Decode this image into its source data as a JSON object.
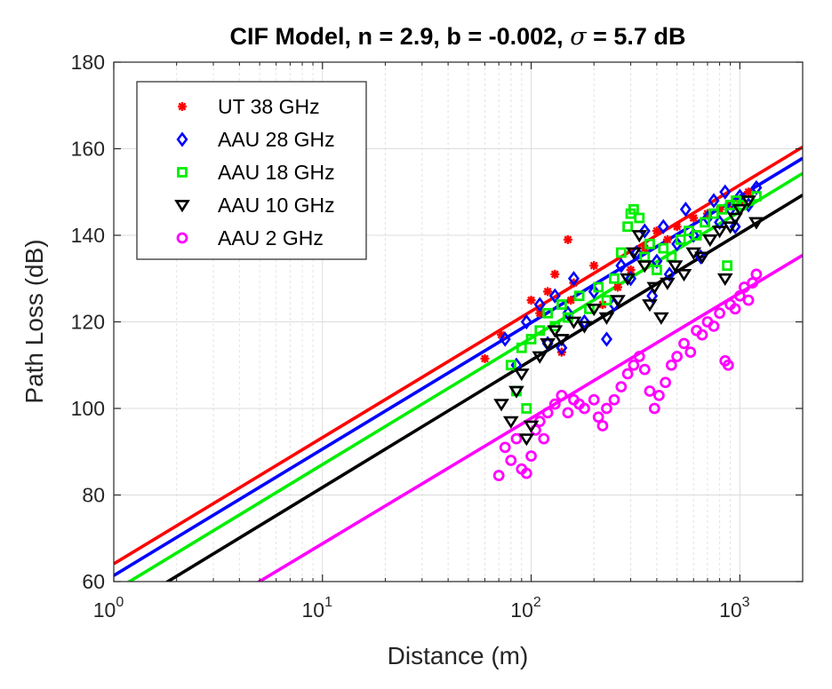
{
  "chart_data": {
    "type": "scatter",
    "title": "CIF Model, n = 2.9, b = -0.002,",
    "title_sigma": "σ",
    "title_suffix": "= 5.7 dB",
    "xlabel": "Distance (m)",
    "ylabel": "Path Loss (dB)",
    "x_scale": "log",
    "xlim": [
      1,
      2000
    ],
    "ylim": [
      60,
      180
    ],
    "x_ticks": [
      1,
      10,
      100,
      1000
    ],
    "x_tick_labels": [
      {
        "base": "10",
        "exp": "0"
      },
      {
        "base": "10",
        "exp": "1"
      },
      {
        "base": "10",
        "exp": "2"
      },
      {
        "base": "10",
        "exp": "3"
      }
    ],
    "y_ticks": [
      60,
      80,
      100,
      120,
      140,
      160,
      180
    ],
    "grid": true,
    "legend_position": "top-left",
    "series": [
      {
        "name": "UT 38 GHz",
        "marker": "star",
        "color": "#ff0000",
        "fit_line": {
          "x": [
            1,
            2000
          ],
          "y": [
            64.1,
            160.4
          ]
        },
        "points": [
          [
            60,
            111.5
          ],
          [
            72,
            117
          ],
          [
            100,
            125
          ],
          [
            110,
            122
          ],
          [
            120,
            127
          ],
          [
            130,
            131
          ],
          [
            140,
            113
          ],
          [
            150,
            139
          ],
          [
            155,
            125
          ],
          [
            160,
            129
          ],
          [
            200,
            133
          ],
          [
            220,
            124
          ],
          [
            260,
            128
          ],
          [
            300,
            132
          ],
          [
            350,
            137
          ],
          [
            400,
            141
          ],
          [
            450,
            139
          ],
          [
            500,
            142
          ],
          [
            600,
            144
          ],
          [
            700,
            145
          ],
          [
            800,
            146
          ],
          [
            900,
            147
          ],
          [
            1000,
            148
          ],
          [
            1100,
            150
          ]
        ]
      },
      {
        "name": "AAU 28 GHz",
        "marker": "diamond",
        "color": "#0000ff",
        "fit_line": {
          "x": [
            1,
            2000
          ],
          "y": [
            61.4,
            157.8
          ]
        },
        "points": [
          [
            75,
            116
          ],
          [
            85,
            110
          ],
          [
            95,
            120
          ],
          [
            110,
            124
          ],
          [
            120,
            115
          ],
          [
            130,
            126
          ],
          [
            140,
            114
          ],
          [
            150,
            122
          ],
          [
            160,
            130
          ],
          [
            180,
            120
          ],
          [
            200,
            127
          ],
          [
            230,
            116
          ],
          [
            250,
            124
          ],
          [
            270,
            133
          ],
          [
            300,
            130
          ],
          [
            320,
            136
          ],
          [
            350,
            141
          ],
          [
            380,
            126
          ],
          [
            400,
            134
          ],
          [
            430,
            142
          ],
          [
            460,
            131
          ],
          [
            500,
            138
          ],
          [
            550,
            146
          ],
          [
            600,
            140
          ],
          [
            650,
            135
          ],
          [
            700,
            144
          ],
          [
            750,
            148
          ],
          [
            800,
            143
          ],
          [
            850,
            150
          ],
          [
            900,
            146
          ],
          [
            950,
            142
          ],
          [
            1000,
            149
          ],
          [
            1100,
            147
          ],
          [
            1200,
            151
          ]
        ]
      },
      {
        "name": "AAU 18 GHz",
        "marker": "square",
        "color": "#00ee00",
        "fit_line": {
          "x": [
            1,
            2000
          ],
          "y": [
            57.8,
            154.3
          ]
        },
        "points": [
          [
            80,
            110
          ],
          [
            85,
            104
          ],
          [
            90,
            114
          ],
          [
            95,
            100
          ],
          [
            100,
            116
          ],
          [
            110,
            118
          ],
          [
            120,
            122
          ],
          [
            130,
            119
          ],
          [
            140,
            124
          ],
          [
            150,
            121
          ],
          [
            170,
            126
          ],
          [
            190,
            123
          ],
          [
            210,
            128
          ],
          [
            230,
            125
          ],
          [
            250,
            130
          ],
          [
            270,
            136
          ],
          [
            290,
            142
          ],
          [
            300,
            145
          ],
          [
            310,
            146
          ],
          [
            330,
            144
          ],
          [
            350,
            135
          ],
          [
            370,
            138
          ],
          [
            400,
            132
          ],
          [
            430,
            137
          ],
          [
            470,
            135
          ],
          [
            520,
            139
          ],
          [
            570,
            141
          ],
          [
            620,
            140
          ],
          [
            680,
            143
          ],
          [
            750,
            145
          ],
          [
            820,
            146
          ],
          [
            870,
            133
          ],
          [
            900,
            147
          ],
          [
            960,
            148
          ],
          [
            1020,
            147
          ],
          [
            1100,
            148
          ],
          [
            1200,
            149
          ]
        ]
      },
      {
        "name": "AAU 10 GHz",
        "marker": "triangle",
        "color": "#000000",
        "fit_line": {
          "x": [
            1,
            2000
          ],
          "y": [
            52.4,
            149.3
          ]
        },
        "points": [
          [
            72,
            101
          ],
          [
            80,
            97
          ],
          [
            85,
            104
          ],
          [
            90,
            108
          ],
          [
            95,
            93
          ],
          [
            100,
            96
          ],
          [
            110,
            112
          ],
          [
            120,
            115
          ],
          [
            130,
            118
          ],
          [
            140,
            116
          ],
          [
            160,
            120
          ],
          [
            180,
            119
          ],
          [
            200,
            123
          ],
          [
            230,
            121
          ],
          [
            260,
            125
          ],
          [
            290,
            130
          ],
          [
            310,
            136
          ],
          [
            330,
            140
          ],
          [
            350,
            133
          ],
          [
            370,
            124
          ],
          [
            390,
            128
          ],
          [
            420,
            121
          ],
          [
            450,
            129
          ],
          [
            490,
            133
          ],
          [
            540,
            131
          ],
          [
            600,
            136
          ],
          [
            660,
            135
          ],
          [
            720,
            139
          ],
          [
            800,
            141
          ],
          [
            850,
            130
          ],
          [
            900,
            142
          ],
          [
            950,
            144
          ],
          [
            1000,
            146
          ],
          [
            1100,
            148
          ],
          [
            1200,
            143
          ]
        ]
      },
      {
        "name": "AAU 2 GHz",
        "marker": "circle",
        "color": "#ff00ff",
        "fit_line": {
          "x": [
            1,
            2000
          ],
          "y": [
            39.8,
            135.4
          ]
        },
        "points": [
          [
            70,
            84.5
          ],
          [
            75,
            91
          ],
          [
            80,
            88
          ],
          [
            85,
            93
          ],
          [
            90,
            86
          ],
          [
            95,
            85
          ],
          [
            100,
            89
          ],
          [
            105,
            95
          ],
          [
            110,
            97
          ],
          [
            115,
            93
          ],
          [
            120,
            99
          ],
          [
            130,
            101
          ],
          [
            140,
            103
          ],
          [
            150,
            99
          ],
          [
            160,
            102
          ],
          [
            170,
            101
          ],
          [
            180,
            100
          ],
          [
            200,
            102
          ],
          [
            210,
            98
          ],
          [
            220,
            96
          ],
          [
            230,
            100
          ],
          [
            250,
            102
          ],
          [
            270,
            105
          ],
          [
            290,
            108
          ],
          [
            310,
            110
          ],
          [
            330,
            112
          ],
          [
            350,
            109
          ],
          [
            370,
            104
          ],
          [
            390,
            100
          ],
          [
            410,
            103
          ],
          [
            440,
            106
          ],
          [
            470,
            110
          ],
          [
            500,
            112
          ],
          [
            540,
            115
          ],
          [
            580,
            113
          ],
          [
            620,
            118
          ],
          [
            660,
            117
          ],
          [
            700,
            120
          ],
          [
            750,
            119
          ],
          [
            800,
            122
          ],
          [
            850,
            111
          ],
          [
            880,
            110
          ],
          [
            900,
            124
          ],
          [
            950,
            123
          ],
          [
            1000,
            126
          ],
          [
            1050,
            128
          ],
          [
            1100,
            125
          ],
          [
            1150,
            129
          ],
          [
            1200,
            131
          ]
        ]
      }
    ]
  }
}
